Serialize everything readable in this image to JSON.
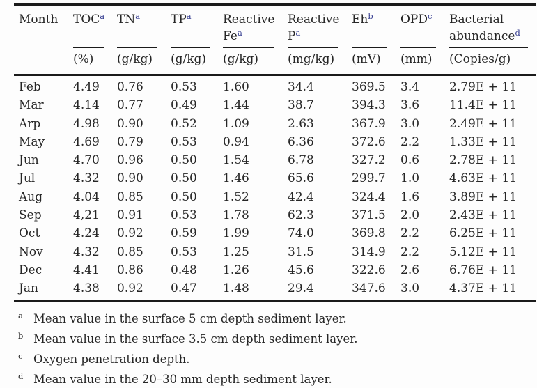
{
  "colors": {
    "text": "#262626",
    "header_superscript": "#333b8f",
    "rule": "#1b1b1b",
    "background": "#fdfdfd"
  },
  "table": {
    "columns": [
      {
        "line1": "Month",
        "line2": "",
        "sup": "",
        "unit": ""
      },
      {
        "line1": "TOC",
        "line2": "",
        "sup": "a",
        "unit": "(%)"
      },
      {
        "line1": "TN",
        "line2": "",
        "sup": "a",
        "unit": "(g/kg)"
      },
      {
        "line1": "TP",
        "line2": "",
        "sup": "a",
        "unit": "(g/kg)"
      },
      {
        "line1": "Reactive",
        "line2": "Fe",
        "sup": "a",
        "unit": "(g/kg)"
      },
      {
        "line1": "Reactive",
        "line2": "P",
        "sup": "a",
        "unit": "(mg/kg)"
      },
      {
        "line1": "Eh",
        "line2": "",
        "sup": "b",
        "unit": "(mV)"
      },
      {
        "line1": "OPD",
        "line2": "",
        "sup": "c",
        "unit": "(mm)"
      },
      {
        "line1": "Bacterial",
        "line2": "abundance",
        "sup": "d",
        "unit": "(Copies/g)"
      }
    ],
    "rows": [
      [
        "Feb",
        "4.49",
        "0.76",
        "0.53",
        "1.60",
        "34.4",
        "369.5",
        "3.4",
        "2.79E + 11"
      ],
      [
        "Mar",
        "4.14",
        "0.77",
        "0.49",
        "1.44",
        "38.7",
        "394.3",
        "3.6",
        "11.4E + 11"
      ],
      [
        "Arp",
        "4.98",
        "0.90",
        "0.52",
        "1.09",
        "2.63",
        "367.9",
        "3.0",
        "2.49E + 11"
      ],
      [
        "May",
        "4.69",
        "0.79",
        "0.53",
        "0.94",
        "6.36",
        "372.6",
        "2.2",
        "1.33E + 11"
      ],
      [
        "Jun",
        "4.70",
        "0.96",
        "0.50",
        "1.54",
        "6.78",
        "327.2",
        "0.6",
        "2.78E + 11"
      ],
      [
        "Jul",
        "4.32",
        "0.90",
        "0.50",
        "1.46",
        "65.6",
        "299.7",
        "1.0",
        "4.63E + 11"
      ],
      [
        "Aug",
        "4.04",
        "0.85",
        "0.50",
        "1.52",
        "42.4",
        "324.4",
        "1.6",
        "3.89E + 11"
      ],
      [
        "Sep",
        "4,21",
        "0.91",
        "0.53",
        "1.78",
        "62.3",
        "371.5",
        "2.0",
        "2.43E + 11"
      ],
      [
        "Oct",
        "4.24",
        "0.92",
        "0.59",
        "1.99",
        "74.0",
        "369.8",
        "2.2",
        "6.25E + 11"
      ],
      [
        "Nov",
        "4.32",
        "0.85",
        "0.53",
        "1.25",
        "31.5",
        "314.9",
        "2.2",
        "5.12E + 11"
      ],
      [
        "Dec",
        "4.41",
        "0.86",
        "0.48",
        "1.26",
        "45.6",
        "322.6",
        "2.6",
        "6.76E + 11"
      ],
      [
        "Jan",
        "4.38",
        "0.92",
        "0.47",
        "1.48",
        "29.4",
        "347.6",
        "3.0",
        "4.37E + 11"
      ]
    ]
  },
  "footnotes": [
    {
      "marker": "a",
      "text": "Mean value in the surface 5 cm depth sediment layer."
    },
    {
      "marker": "b",
      "text": "Mean value in the surface 3.5 cm depth sediment layer."
    },
    {
      "marker": "c",
      "text": "Oxygen penetration depth."
    },
    {
      "marker": "d",
      "text": "Mean value in the 20–30 mm depth sediment layer."
    }
  ]
}
